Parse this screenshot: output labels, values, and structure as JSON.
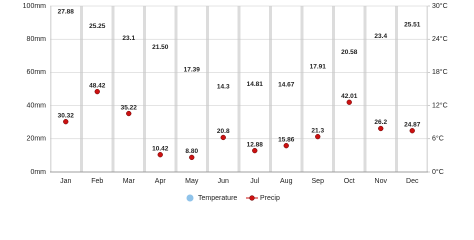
{
  "chart_data": {
    "type": "climate",
    "categories": [
      "Jan",
      "Feb",
      "Mar",
      "Apr",
      "May",
      "Jun",
      "Jul",
      "Aug",
      "Sep",
      "Oct",
      "Nov",
      "Dec"
    ],
    "series": [
      {
        "name": "Temperature",
        "color": "#8fc3ea",
        "axis": "y2",
        "values": [
          27.88,
          25.25,
          23.1,
          21.5,
          17.39,
          14.3,
          14.81,
          14.67,
          17.91,
          20.58,
          23.4,
          25.51
        ],
        "value_labels": [
          "27.88",
          "25.25",
          "23.1",
          "21.50",
          "17.39",
          "14.3",
          "14.81",
          "14.67",
          "17.91",
          "20.58",
          "23.4",
          "25.51"
        ]
      },
      {
        "name": "Precip",
        "color": "#cc1111",
        "values": [
          30.32,
          48.42,
          35.22,
          10.42,
          8.8,
          20.8,
          12.88,
          15.86,
          21.3,
          42.01,
          26.2,
          24.87
        ],
        "value_labels": [
          "30.32",
          "48.42",
          "35.22",
          "10.42",
          "8.80",
          "20.8",
          "12.88",
          "15.86",
          "21.3",
          "42.01",
          "26.2",
          "24.87"
        ]
      }
    ],
    "ylim": [
      0,
      100
    ],
    "yticks": [
      {
        "value": 0,
        "label": "0mm"
      },
      {
        "value": 20,
        "label": "20mm"
      },
      {
        "value": 40,
        "label": "40mm"
      },
      {
        "value": 60,
        "label": "60mm"
      },
      {
        "value": 80,
        "label": "80mm"
      },
      {
        "value": 100,
        "label": "100mm"
      }
    ],
    "y2lim": [
      0,
      30
    ],
    "y2ticks": [
      {
        "value": 0,
        "label": "0°C"
      },
      {
        "value": 6,
        "label": "6°C"
      },
      {
        "value": 12,
        "label": "12°C"
      },
      {
        "value": 18,
        "label": "18°C"
      },
      {
        "value": 24,
        "label": "24°C"
      },
      {
        "value": 30,
        "label": "30°C"
      }
    ],
    "grid": true
  }
}
